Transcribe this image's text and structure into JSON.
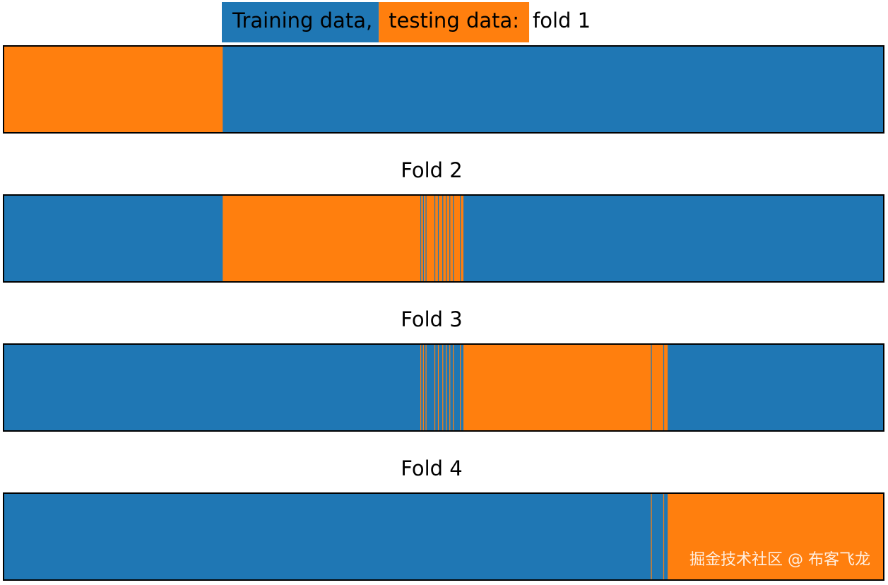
{
  "chart_data": {
    "type": "bar",
    "title_parts": [
      "Training data,",
      "testing data:",
      "fold 1"
    ],
    "title_part_colors": [
      "#1f77b4",
      "#ff7f0e",
      ""
    ],
    "colors": {
      "train": "#1f77b4",
      "test": "#ff7f0e"
    },
    "series": [
      {
        "name": "Training data",
        "color": "#1f77b4"
      },
      {
        "name": "testing data",
        "color": "#ff7f0e"
      }
    ],
    "x_range": [
      0,
      1
    ],
    "folds": [
      {
        "title": "",
        "test_intervals": [
          [
            0.0,
            0.249
          ]
        ]
      },
      {
        "title": "Fold 2",
        "test_intervals": [
          [
            0.249,
            0.4735
          ],
          [
            0.4745,
            0.4765
          ],
          [
            0.4775,
            0.4795
          ],
          [
            0.4805,
            0.4895
          ],
          [
            0.4905,
            0.4935
          ],
          [
            0.4945,
            0.4985
          ],
          [
            0.4995,
            0.5025
          ],
          [
            0.5035,
            0.5065
          ],
          [
            0.5075,
            0.5105
          ],
          [
            0.5115,
            0.5185
          ],
          [
            0.5195,
            0.5225
          ]
        ]
      },
      {
        "title": "Fold 3",
        "test_intervals": [
          [
            0.4735,
            0.4745
          ],
          [
            0.4765,
            0.4775
          ],
          [
            0.4795,
            0.4805
          ],
          [
            0.4895,
            0.4905
          ],
          [
            0.4935,
            0.4945
          ],
          [
            0.4985,
            0.4995
          ],
          [
            0.5025,
            0.5035
          ],
          [
            0.5065,
            0.5075
          ],
          [
            0.5105,
            0.5115
          ],
          [
            0.5185,
            0.5195
          ],
          [
            0.5225,
            0.7355
          ],
          [
            0.7365,
            0.7495
          ],
          [
            0.7505,
            0.7545
          ]
        ]
      },
      {
        "title": "Fold 4",
        "test_intervals": [
          [
            0.7355,
            0.7365
          ],
          [
            0.7495,
            0.7505
          ],
          [
            0.7545,
            1.0
          ]
        ]
      }
    ]
  },
  "watermark": "掘金技术社区 @ 布客飞龙"
}
